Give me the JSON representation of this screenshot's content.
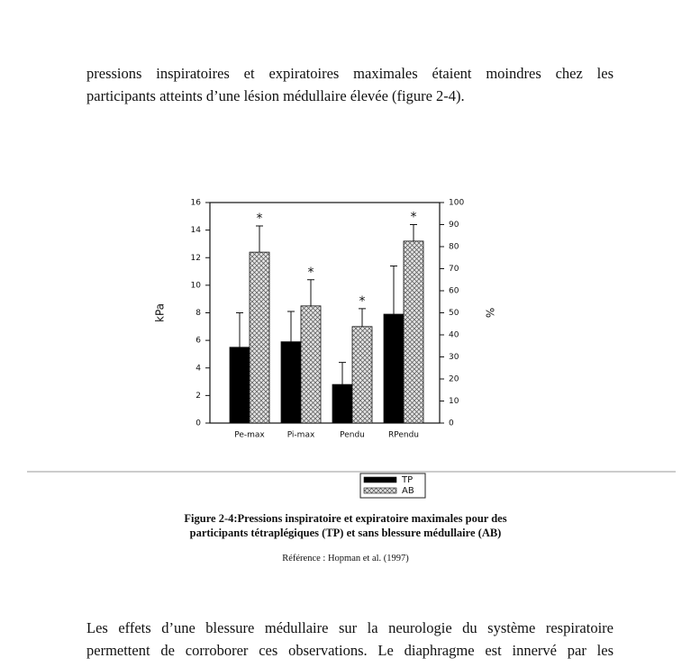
{
  "paragraphs": [
    [
      "pressions inspiratoires et expiratoires maximales étaient moindres chez les",
      "participants atteints d’une lésion médullaire élevée (figure 2-4)."
    ],
    [
      "Les effets d’une blessure médullaire sur la neurologie du système respiratoire",
      "permettent de corroborer ces observations. Le diaphragme est innervé par les"
    ]
  ],
  "chart_data": {
    "type": "bar",
    "categories": [
      "Pe-max",
      "Pi-max",
      "Pendu",
      "RPendu"
    ],
    "series": [
      {
        "name": "TP",
        "color": "#000000",
        "values": [
          5.5,
          5.9,
          2.8,
          7.9
        ],
        "errors": [
          2.5,
          2.2,
          1.6,
          3.5
        ]
      },
      {
        "name": "AB",
        "color": "#d8d8d8",
        "pattern": "crosshatch",
        "values": [
          12.4,
          8.5,
          7.0,
          13.2
        ],
        "errors": [
          1.9,
          1.9,
          1.3,
          1.2
        ]
      }
    ],
    "significance": [
      "*",
      "*",
      "*",
      "*"
    ],
    "ylabel": "kPa",
    "y2label": "%",
    "ylim": [
      0,
      16
    ],
    "yticks": [
      0,
      2,
      4,
      6,
      8,
      10,
      12,
      14,
      16
    ],
    "y2lim": [
      0,
      100
    ],
    "y2ticks": [
      0,
      10,
      20,
      30,
      40,
      50,
      60,
      70,
      80,
      90,
      100
    ]
  },
  "caption": [
    "Figure 2-4:Pressions inspiratoire et expiratoire maximales pour des",
    "participants tétraplégiques (TP) et sans blessure médullaire (AB)"
  ],
  "reference": "Référence : Hopman et al. (1997)"
}
